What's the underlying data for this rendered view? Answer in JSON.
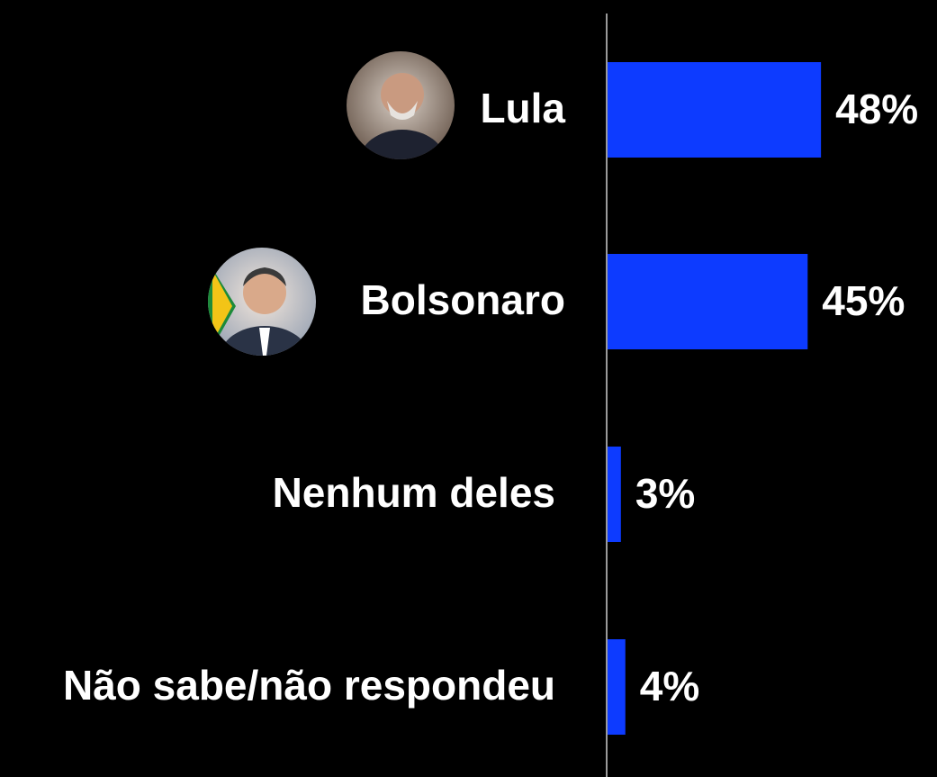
{
  "chart_data": {
    "type": "bar",
    "orientation": "horizontal",
    "categories": [
      "Lula",
      "Bolsonaro",
      "Nenhum deles",
      "Não sabe/não respondeu"
    ],
    "values": [
      48,
      45,
      3,
      4
    ],
    "value_labels": [
      "48%",
      "45%",
      "3%",
      "4%"
    ],
    "color": "#0d3bff",
    "xlim": [
      0,
      50
    ]
  }
}
